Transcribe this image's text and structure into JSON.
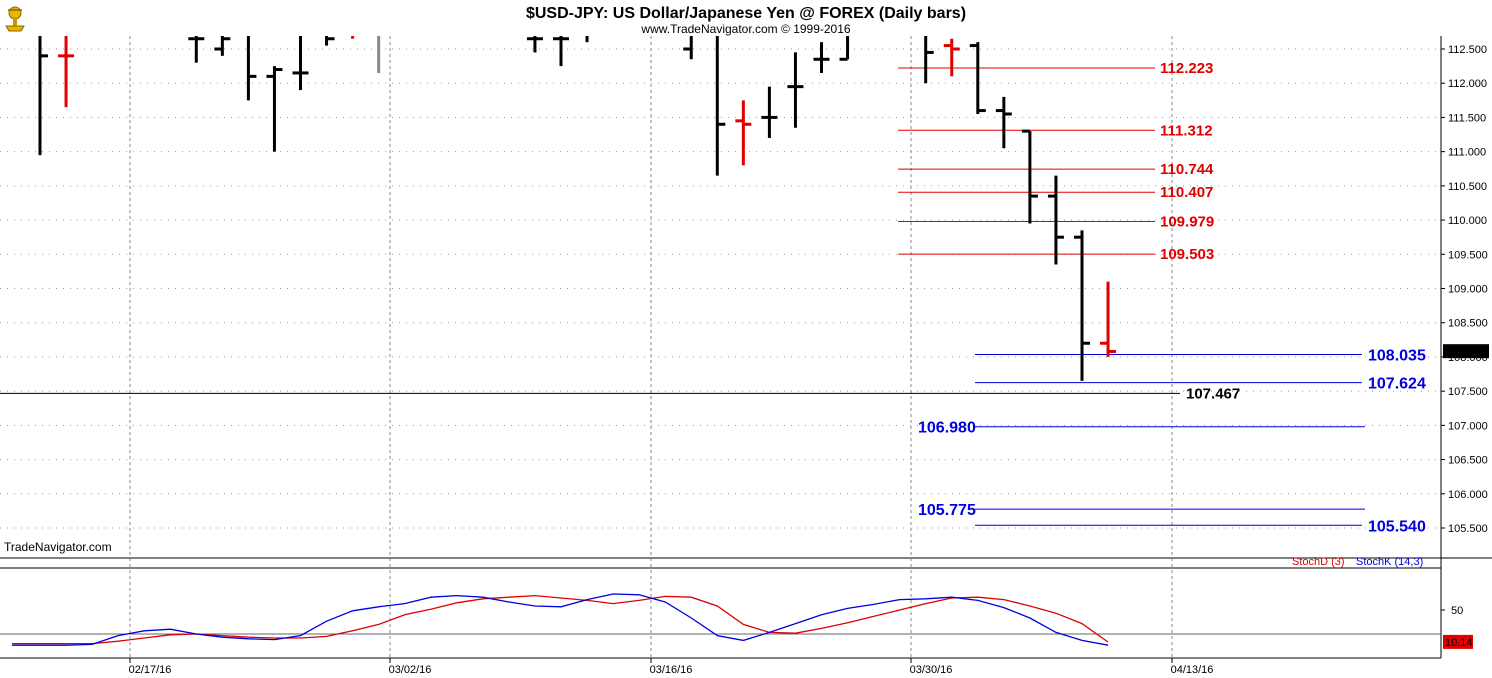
{
  "chart_title": "$USD-JPY:  US Dollar/Japanese Yen @ FOREX  (Daily bars)",
  "copyright": "www.TradeNavigator.com © 1999-2016",
  "watermark": "TradeNavigator.com",
  "logo_icon": "trade-navigator-logo-icon",
  "colors": {
    "up": "#000000",
    "down": "#e00000",
    "resistance": "#e00000",
    "support": "#0000e0",
    "stoch_d": "#e00000",
    "stoch_k": "#0000e0",
    "grid": "#888888"
  },
  "chart_data": [
    {
      "type": "ohlc",
      "title": "$USD-JPY:  US Dollar/Japanese Yen @ FOREX  (Daily bars)",
      "ylim": [
        105.2,
        112.8
      ],
      "y_ticks": [
        "112.500",
        "112.000",
        "111.500",
        "111.000",
        "110.500",
        "110.000",
        "109.500",
        "109.000",
        "108.500",
        "108.000",
        "107.500",
        "107.000",
        "106.500",
        "106.000",
        "105.500"
      ],
      "x_ticks": [
        "02/17/16",
        "03/02/16",
        "03/16/16",
        "03/30/16",
        "04/13/16"
      ],
      "bars": [
        {
          "i": 0,
          "o": 112.9,
          "h": 112.9,
          "l": 110.95,
          "c": 112.4,
          "color": "up"
        },
        {
          "i": 1,
          "o": 112.4,
          "h": 112.9,
          "l": 111.65,
          "c": 112.4,
          "color": "down"
        },
        {
          "i": 6,
          "o": 112.65,
          "h": 112.9,
          "l": 112.3,
          "c": 112.65,
          "color": "up"
        },
        {
          "i": 7,
          "o": 112.5,
          "h": 112.9,
          "l": 112.4,
          "c": 112.65,
          "color": "up"
        },
        {
          "i": 8,
          "o": 112.9,
          "h": 112.9,
          "l": 111.75,
          "c": 112.1,
          "color": "up"
        },
        {
          "i": 9,
          "o": 112.1,
          "h": 112.25,
          "l": 111.0,
          "c": 112.2,
          "color": "up"
        },
        {
          "i": 10,
          "o": 112.15,
          "h": 112.9,
          "l": 111.9,
          "c": 112.15,
          "color": "up"
        },
        {
          "i": 11,
          "o": 112.9,
          "h": 112.9,
          "l": 112.55,
          "c": 112.65,
          "color": "up"
        },
        {
          "i": 12,
          "o": 112.7,
          "h": 112.9,
          "l": 112.65,
          "c": 112.7,
          "color": "down"
        },
        {
          "i": 13,
          "o": 112.7,
          "h": 112.9,
          "l": 112.15,
          "c": 112.7,
          "color": "gray"
        },
        {
          "i": 19,
          "o": 112.65,
          "h": 112.9,
          "l": 112.45,
          "c": 112.65,
          "color": "up"
        },
        {
          "i": 20,
          "o": 112.65,
          "h": 112.9,
          "l": 112.25,
          "c": 112.65,
          "color": "up"
        },
        {
          "i": 21,
          "o": 112.9,
          "h": 112.9,
          "l": 112.6,
          "c": 112.7,
          "color": "up"
        },
        {
          "i": 25,
          "o": 112.5,
          "h": 112.9,
          "l": 112.35,
          "c": 112.7,
          "color": "up"
        },
        {
          "i": 26,
          "o": 112.7,
          "h": 112.9,
          "l": 110.65,
          "c": 111.4,
          "color": "up"
        },
        {
          "i": 27,
          "o": 111.45,
          "h": 111.75,
          "l": 110.8,
          "c": 111.4,
          "color": "down"
        },
        {
          "i": 28,
          "o": 111.5,
          "h": 111.95,
          "l": 111.2,
          "c": 111.5,
          "color": "up"
        },
        {
          "i": 29,
          "o": 111.95,
          "h": 112.45,
          "l": 111.35,
          "c": 111.95,
          "color": "up"
        },
        {
          "i": 30,
          "o": 112.35,
          "h": 112.6,
          "l": 112.15,
          "c": 112.35,
          "color": "up"
        },
        {
          "i": 31,
          "o": 112.35,
          "h": 112.85,
          "l": 112.35,
          "c": 112.85,
          "color": "up"
        },
        {
          "i": 34,
          "o": 112.7,
          "h": 112.9,
          "l": 112.0,
          "c": 112.45,
          "color": "up"
        },
        {
          "i": 35,
          "o": 112.55,
          "h": 112.65,
          "l": 112.1,
          "c": 112.5,
          "color": "down"
        },
        {
          "i": 36,
          "o": 112.55,
          "h": 112.6,
          "l": 111.55,
          "c": 111.6,
          "color": "up"
        },
        {
          "i": 37,
          "o": 111.6,
          "h": 111.8,
          "l": 111.05,
          "c": 111.55,
          "color": "up"
        },
        {
          "i": 38,
          "o": 111.3,
          "h": 111.3,
          "l": 109.95,
          "c": 110.35,
          "color": "up"
        },
        {
          "i": 39,
          "o": 110.35,
          "h": 110.65,
          "l": 109.35,
          "c": 109.75,
          "color": "up"
        },
        {
          "i": 40,
          "o": 109.75,
          "h": 109.85,
          "l": 107.65,
          "c": 108.2,
          "color": "up"
        },
        {
          "i": 41,
          "o": 108.2,
          "h": 109.1,
          "l": 108.0,
          "c": 108.08,
          "color": "down"
        }
      ],
      "last_price": "108.084",
      "horizontal_line": "107.467",
      "resistance_levels": [
        "112.223",
        "111.312",
        "110.744",
        "110.407",
        "109.979",
        "109.503"
      ],
      "support_levels": [
        {
          "label": "108.035",
          "side": "right"
        },
        {
          "label": "107.624",
          "side": "right"
        },
        {
          "label": "106.980",
          "side": "left"
        },
        {
          "label": "105.775",
          "side": "left"
        },
        {
          "label": "105.540",
          "side": "right"
        }
      ]
    },
    {
      "type": "line",
      "ylim": [
        0,
        100
      ],
      "y_ticks": [
        "50"
      ],
      "hline": 20,
      "last_value": "10.14",
      "series": [
        {
          "name": "StochD (3)",
          "color": "stoch_d",
          "x": [
            0,
            1,
            2,
            3,
            4,
            5,
            6,
            7,
            8,
            9,
            10,
            11,
            12,
            13,
            14,
            15,
            16,
            17,
            18,
            19,
            20,
            21,
            22,
            23,
            24,
            25,
            26,
            27,
            28,
            29,
            30,
            31,
            32,
            33,
            34,
            35,
            36,
            37,
            38,
            39,
            40,
            41
          ],
          "values": [
            8,
            8,
            8,
            11,
            15,
            19,
            20,
            18,
            16,
            15,
            15,
            17,
            24,
            32,
            44,
            51,
            59,
            64,
            66,
            68,
            65,
            62,
            58,
            62,
            67,
            66,
            55,
            32,
            22,
            21,
            27,
            34,
            42,
            50,
            58,
            65,
            66,
            63,
            55,
            46,
            33,
            10
          ]
        },
        {
          "name": "StochK (14,3)",
          "color": "stoch_k",
          "x": [
            0,
            1,
            2,
            3,
            4,
            5,
            6,
            7,
            8,
            9,
            10,
            11,
            12,
            13,
            14,
            15,
            16,
            17,
            18,
            19,
            20,
            21,
            22,
            23,
            24,
            25,
            26,
            27,
            28,
            29,
            30,
            31,
            32,
            33,
            34,
            35,
            36,
            37,
            38,
            39,
            40,
            41
          ],
          "values": [
            6,
            6,
            7,
            18,
            24,
            26,
            20,
            16,
            14,
            13,
            18,
            36,
            49,
            54,
            58,
            66,
            68,
            66,
            60,
            55,
            54,
            63,
            70,
            69,
            60,
            40,
            18,
            12,
            22,
            33,
            44,
            52,
            57,
            63,
            64,
            66,
            62,
            53,
            40,
            22,
            12,
            6
          ]
        }
      ]
    }
  ]
}
